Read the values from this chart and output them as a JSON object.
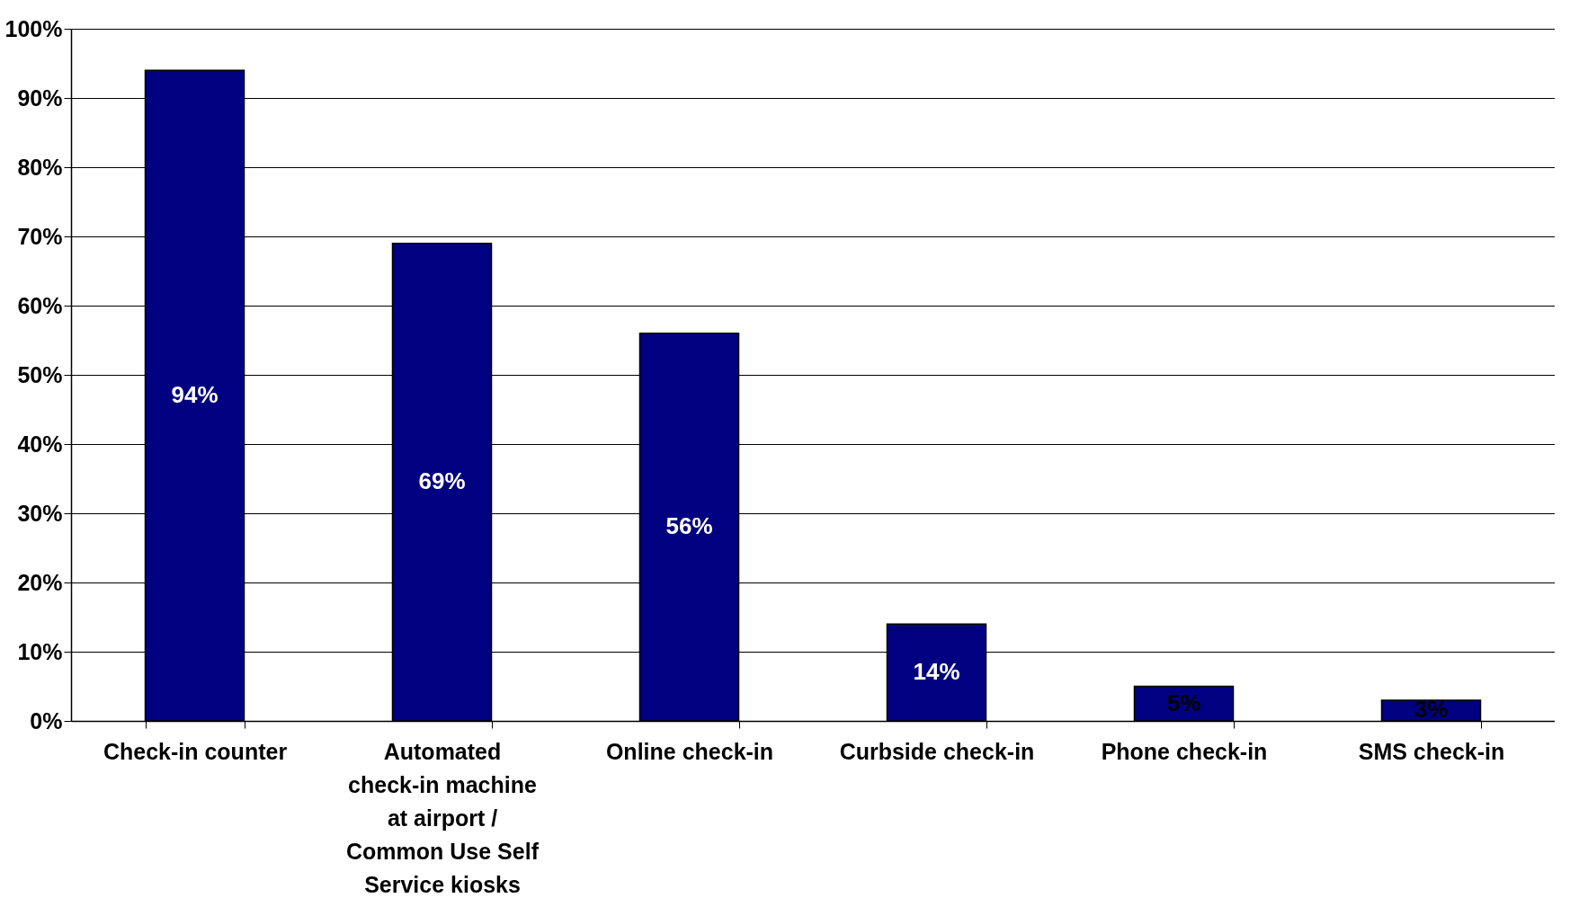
{
  "chart_data": {
    "type": "bar",
    "categories": [
      "Check-in counter",
      "Automated check-in machine at airport / Common Use Self Service kiosks",
      "Online check-in",
      "Curbside check-in",
      "Phone check-in",
      "SMS check-in"
    ],
    "values": [
      94,
      69,
      56,
      14,
      5,
      3
    ],
    "value_labels": [
      "94%",
      "69%",
      "56%",
      "14%",
      "5%",
      "3%"
    ],
    "color": "#000080",
    "ylim": [
      0,
      100
    ],
    "yticks": [
      {
        "value": 0,
        "label": "0%"
      },
      {
        "value": 10,
        "label": "10%"
      },
      {
        "value": 20,
        "label": "20%"
      },
      {
        "value": 30,
        "label": "30%"
      },
      {
        "value": 40,
        "label": "40%"
      },
      {
        "value": 50,
        "label": "50%"
      },
      {
        "value": 60,
        "label": "60%"
      },
      {
        "value": 70,
        "label": "70%"
      },
      {
        "value": 80,
        "label": "80%"
      },
      {
        "value": 90,
        "label": "90%"
      },
      {
        "value": 100,
        "label": "100%"
      }
    ],
    "grid": "y"
  }
}
